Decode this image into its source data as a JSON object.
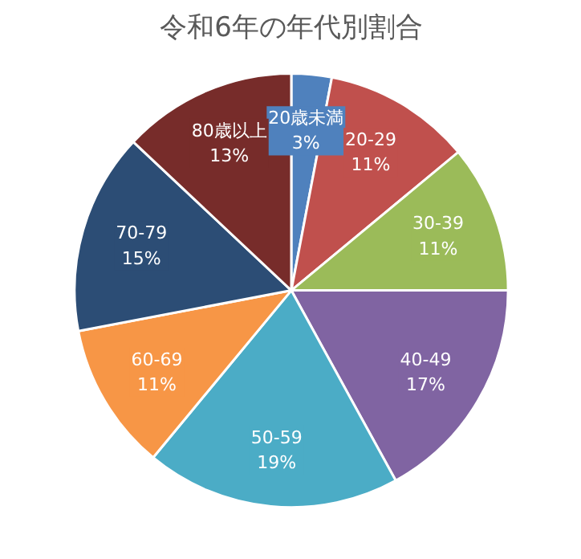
{
  "chart_data": {
    "type": "pie",
    "title": "令和6年の年代別割合",
    "categories": [
      "20歳未満",
      "20-29",
      "30-39",
      "40-49",
      "50-59",
      "60-69",
      "70-79",
      "80歳以上"
    ],
    "values": [
      3,
      11,
      11,
      17,
      19,
      11,
      15,
      13
    ],
    "value_labels": [
      "3%",
      "11%",
      "11%",
      "17%",
      "19%",
      "11%",
      "15%",
      "13%"
    ],
    "colors": [
      "#4f81bd",
      "#c0504d",
      "#9bbb59",
      "#8064a2",
      "#4bacc6",
      "#f79646",
      "#2c4d75",
      "#772c2a"
    ],
    "legend": false
  }
}
